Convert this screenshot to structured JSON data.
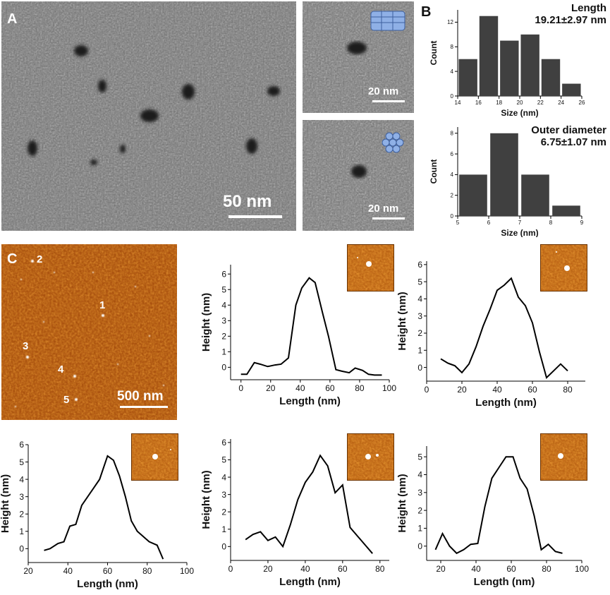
{
  "panel_labels": {
    "a": "A",
    "b": "B",
    "c": "C"
  },
  "tem": {
    "main_scale": "50 nm",
    "inset_top_scale": "20 nm",
    "inset_bottom_scale": "20 nm",
    "inset_top_icon": "nanotube-side-view-icon",
    "inset_bottom_icon": "hexagonal-cross-section-icon"
  },
  "afm": {
    "scale": "500 nm",
    "particle_labels": [
      "1",
      "2",
      "3",
      "4",
      "5"
    ]
  },
  "colors": {
    "bar": "#404040",
    "line": "#000000",
    "afm_bg": "#a0460a",
    "icon_blue": "#8fb0e6"
  },
  "chart_data": [
    {
      "id": "hist-length",
      "type": "bar",
      "title": "Length",
      "subtitle": "19.21±2.97 nm",
      "xlabel": "Size (nm)",
      "ylabel": "Count",
      "x": [
        15,
        17,
        19,
        21,
        23,
        25
      ],
      "values": [
        6,
        13,
        9,
        10,
        6,
        2
      ],
      "xlim": [
        14,
        26
      ],
      "ylim": [
        0,
        14
      ],
      "xticks": [
        14,
        16,
        18,
        20,
        22,
        24,
        26
      ],
      "yticks": [
        0,
        4,
        8,
        12
      ]
    },
    {
      "id": "hist-diameter",
      "type": "bar",
      "title": "Outer diameter",
      "subtitle": "6.75±1.07 nm",
      "xlabel": "Size (nm)",
      "ylabel": "Count",
      "x": [
        5.5,
        6.5,
        7.5,
        8.5
      ],
      "values": [
        4,
        8,
        4,
        1
      ],
      "xlim": [
        5,
        9
      ],
      "ylim": [
        0,
        8.6
      ],
      "xticks": [
        5,
        6,
        7,
        8,
        9
      ],
      "yticks": [
        0,
        2,
        4,
        6,
        8
      ]
    },
    {
      "id": "profile-1",
      "type": "line",
      "xlabel": "Length (nm)",
      "ylabel": "Height (nm)",
      "xlim": [
        -7,
        100
      ],
      "ylim": [
        -0.8,
        6.6
      ],
      "xticks": [
        0,
        20,
        40,
        60,
        80,
        100
      ],
      "yticks": [
        0,
        1,
        2,
        3,
        4,
        5,
        6
      ],
      "x": [
        0,
        4,
        9,
        13,
        18,
        23,
        27,
        32,
        37,
        41,
        46,
        50,
        55,
        59,
        64,
        68,
        73,
        77,
        82,
        86,
        90,
        95
      ],
      "y": [
        -0.45,
        -0.45,
        0.3,
        0.2,
        0.05,
        0.15,
        0.2,
        0.6,
        4.0,
        5.1,
        5.75,
        5.45,
        3.5,
        2.0,
        -0.15,
        -0.25,
        -0.35,
        -0.05,
        -0.2,
        -0.45,
        -0.5,
        -0.5
      ]
    },
    {
      "id": "profile-2",
      "type": "line",
      "xlabel": "Length (nm)",
      "ylabel": "Height (nm)",
      "xlim": [
        0,
        90
      ],
      "ylim": [
        -0.8,
        6.2
      ],
      "xticks": [
        0,
        20,
        40,
        60,
        80
      ],
      "yticks": [
        0,
        1,
        2,
        3,
        4,
        5,
        6
      ],
      "x": [
        8,
        12,
        16,
        20,
        24,
        28,
        32,
        36,
        40,
        44,
        48,
        52,
        56,
        60,
        64,
        68,
        72,
        76,
        80
      ],
      "y": [
        0.5,
        0.25,
        0.1,
        -0.3,
        0.2,
        1.2,
        2.4,
        3.4,
        4.5,
        4.8,
        5.2,
        4.1,
        3.6,
        2.6,
        0.9,
        -0.6,
        -0.2,
        0.2,
        -0.2
      ]
    },
    {
      "id": "profile-3",
      "type": "line",
      "xlabel": "Length (nm)",
      "ylabel": "Height (nm)",
      "xlim": [
        20,
        100
      ],
      "ylim": [
        -0.8,
        6.0
      ],
      "xticks": [
        20,
        40,
        60,
        80,
        100
      ],
      "yticks": [
        0,
        1,
        2,
        3,
        4,
        5,
        6
      ],
      "x": [
        28,
        31,
        35,
        38,
        41,
        44,
        47,
        50,
        53,
        56,
        60,
        63,
        66,
        69,
        72,
        75,
        78,
        81,
        85,
        88
      ],
      "y": [
        -0.1,
        0.0,
        0.3,
        0.4,
        1.3,
        1.4,
        2.5,
        3.0,
        3.5,
        4.0,
        5.35,
        5.1,
        4.2,
        3.0,
        1.6,
        1.0,
        0.7,
        0.4,
        0.2,
        -0.6
      ]
    },
    {
      "id": "profile-4",
      "type": "line",
      "xlabel": "Length (nm)",
      "ylabel": "Height (nm)",
      "xlim": [
        0,
        85
      ],
      "ylim": [
        -0.8,
        6.2
      ],
      "xticks": [
        0,
        20,
        40,
        60,
        80
      ],
      "yticks": [
        0,
        1,
        2,
        3,
        4,
        5,
        6
      ],
      "x": [
        8,
        12,
        16,
        20,
        24,
        28,
        32,
        36,
        40,
        44,
        48,
        52,
        56,
        60,
        64,
        68,
        72,
        76
      ],
      "y": [
        0.4,
        0.7,
        0.85,
        0.35,
        0.55,
        0.0,
        1.25,
        2.7,
        3.7,
        4.3,
        5.25,
        4.65,
        3.1,
        3.55,
        1.1,
        0.6,
        0.1,
        -0.4
      ]
    },
    {
      "id": "profile-5",
      "type": "line",
      "xlabel": "Length (nm)",
      "ylabel": "Height (nm)",
      "xlim": [
        12,
        100
      ],
      "ylim": [
        -0.8,
        5.6
      ],
      "xticks": [
        20,
        40,
        60,
        80,
        100
      ],
      "yticks": [
        0,
        1,
        2,
        3,
        4,
        5
      ],
      "x": [
        17,
        21,
        25,
        29,
        33,
        37,
        41,
        45,
        49,
        53,
        57,
        61,
        65,
        69,
        73,
        77,
        81,
        85,
        89
      ],
      "y": [
        -0.2,
        0.7,
        0.0,
        -0.4,
        -0.2,
        0.1,
        0.15,
        2.2,
        3.8,
        4.4,
        5.0,
        5.0,
        3.8,
        3.2,
        1.7,
        -0.2,
        0.1,
        -0.3,
        -0.4
      ]
    }
  ]
}
